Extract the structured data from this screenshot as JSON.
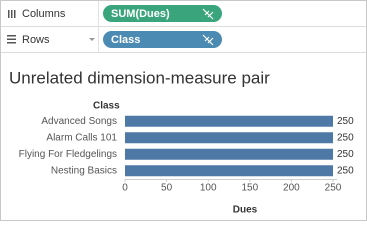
{
  "shelves": {
    "columns": {
      "label": "Columns",
      "pill": "SUM(Dues)"
    },
    "rows": {
      "label": "Rows",
      "pill": "Class"
    }
  },
  "chart_data": {
    "type": "bar",
    "orientation": "horizontal",
    "title": "Unrelated dimension-measure pair",
    "category_header": "Class",
    "x_label": "Dues",
    "categories": [
      "Advanced Songs",
      "Alarm Calls 101",
      "Flying For Fledgelings",
      "Nesting Basics"
    ],
    "values": [
      250,
      250,
      250,
      250
    ],
    "color": "#4e79a7",
    "xlim": [
      0,
      250
    ],
    "xticks": [
      0,
      50,
      100,
      150,
      200,
      250
    ],
    "grid": false
  }
}
